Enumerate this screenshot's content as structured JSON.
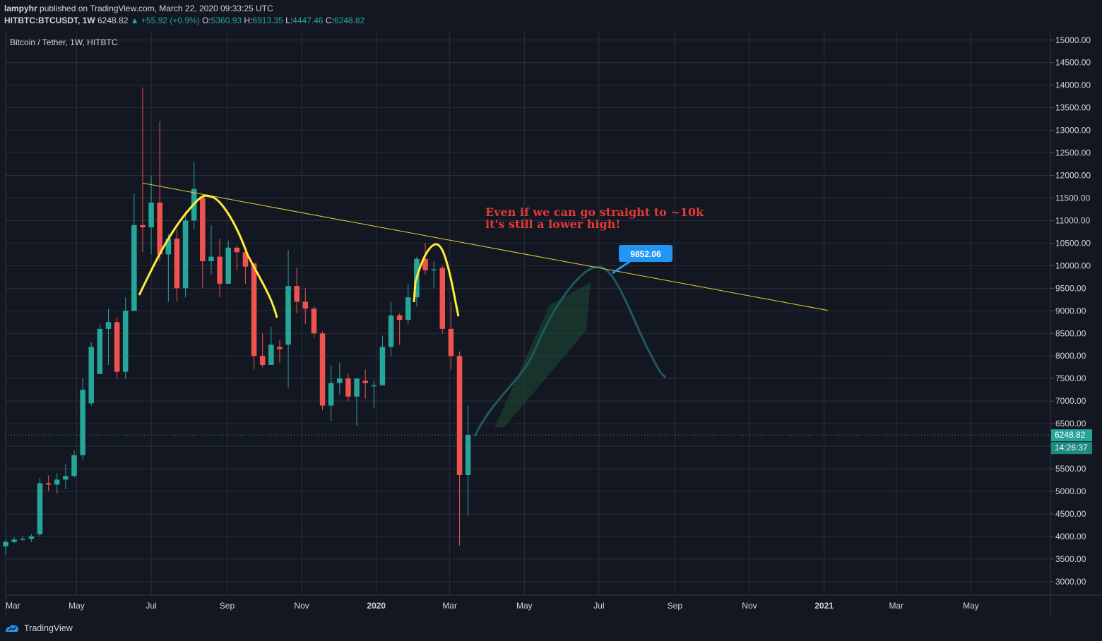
{
  "header": {
    "author": "lampyhr",
    "published_text": "published on TradingView.com, March 22, 2020 09:33:25 UTC",
    "symbol": "HITBTC:BTCUSDT, 1W",
    "last": "6248.82",
    "change": "▲ +55.92 (+0.9%)",
    "o_label": "O:",
    "o_value": "5360.93",
    "h_label": "H:",
    "h_value": "6913.35",
    "l_label": "L:",
    "l_value": "4447.46",
    "c_label": "C:",
    "c_value": "6248.82"
  },
  "footer": {
    "brand": "TradingView",
    "icon": "tradingview-logo-icon"
  },
  "colors": {
    "background": "#131722",
    "up": "#26a69a",
    "down": "#ef5350",
    "grid": "#2a2e39",
    "trendline": "#e3d42b",
    "annotation_text": "#e53935",
    "label_bg": "#2196f3",
    "projection": "#1e5a5a"
  },
  "chart_data": {
    "type": "candlestick",
    "title": "Bitcoin / Tether, 1W, HITBTC",
    "x_tick_labels": [
      "Mar",
      "May",
      "Jul",
      "Sep",
      "Nov",
      "2020",
      "Mar",
      "May",
      "Jul",
      "Sep",
      "Nov",
      "2021",
      "Mar",
      "May"
    ],
    "y_ticks": [
      "15000.00",
      "14500.00",
      "14000.00",
      "13500.00",
      "13000.00",
      "12500.00",
      "12000.00",
      "11500.00",
      "11000.00",
      "10500.00",
      "10000.00",
      "9500.00",
      "9000.00",
      "8500.00",
      "8000.00",
      "7500.00",
      "7000.00",
      "6500.00",
      "6000.00",
      "5500.00",
      "5000.00",
      "4500.00",
      "4000.00",
      "3500.00",
      "3000.00"
    ],
    "ylim": [
      2700,
      15200
    ],
    "x_range": [
      "2019-03-04",
      "2021-07-05"
    ],
    "grid": true,
    "last_price": {
      "value": 6248.82,
      "label": "6248.82",
      "countdown": "14:26:37"
    },
    "candles": [
      {
        "t": "2019-03-04",
        "o": 3780,
        "h": 3930,
        "l": 3600,
        "c": 3880
      },
      {
        "t": "2019-03-11",
        "o": 3880,
        "h": 3980,
        "l": 3850,
        "c": 3930
      },
      {
        "t": "2019-03-18",
        "o": 3930,
        "h": 4000,
        "l": 3900,
        "c": 3950
      },
      {
        "t": "2019-03-25",
        "o": 3950,
        "h": 4050,
        "l": 3880,
        "c": 4000
      },
      {
        "t": "2019-04-01",
        "o": 4050,
        "h": 5300,
        "l": 4000,
        "c": 5180
      },
      {
        "t": "2019-04-08",
        "o": 5180,
        "h": 5350,
        "l": 5000,
        "c": 5150
      },
      {
        "t": "2019-04-15",
        "o": 5150,
        "h": 5400,
        "l": 4950,
        "c": 5260
      },
      {
        "t": "2019-04-22",
        "o": 5260,
        "h": 5600,
        "l": 5050,
        "c": 5340
      },
      {
        "t": "2019-04-29",
        "o": 5340,
        "h": 5900,
        "l": 5300,
        "c": 5800
      },
      {
        "t": "2019-05-06",
        "o": 5800,
        "h": 7500,
        "l": 5700,
        "c": 7250
      },
      {
        "t": "2019-05-13",
        "o": 6950,
        "h": 8300,
        "l": 6900,
        "c": 8200
      },
      {
        "t": "2019-05-20",
        "o": 7600,
        "h": 8700,
        "l": 7600,
        "c": 8600
      },
      {
        "t": "2019-05-27",
        "o": 8600,
        "h": 9050,
        "l": 7800,
        "c": 8750
      },
      {
        "t": "2019-06-03",
        "o": 8750,
        "h": 8850,
        "l": 7500,
        "c": 7650
      },
      {
        "t": "2019-06-10",
        "o": 7650,
        "h": 9300,
        "l": 7500,
        "c": 9000
      },
      {
        "t": "2019-06-17",
        "o": 9000,
        "h": 11600,
        "l": 9000,
        "c": 10900
      },
      {
        "t": "2019-06-24",
        "o": 10900,
        "h": 13950,
        "l": 10300,
        "c": 10850
      },
      {
        "t": "2019-07-01",
        "o": 10850,
        "h": 12000,
        "l": 10250,
        "c": 11400
      },
      {
        "t": "2019-07-08",
        "o": 11400,
        "h": 13200,
        "l": 10100,
        "c": 10250
      },
      {
        "t": "2019-07-15",
        "o": 10250,
        "h": 10700,
        "l": 9200,
        "c": 10600
      },
      {
        "t": "2019-07-22",
        "o": 10600,
        "h": 10800,
        "l": 9200,
        "c": 9500
      },
      {
        "t": "2019-07-29",
        "o": 9500,
        "h": 11200,
        "l": 9300,
        "c": 11000
      },
      {
        "t": "2019-08-05",
        "o": 11000,
        "h": 12300,
        "l": 10800,
        "c": 11700
      },
      {
        "t": "2019-08-12",
        "o": 11500,
        "h": 11550,
        "l": 9500,
        "c": 10100
      },
      {
        "t": "2019-08-19",
        "o": 10100,
        "h": 10900,
        "l": 9800,
        "c": 10200
      },
      {
        "t": "2019-08-26",
        "o": 10200,
        "h": 10600,
        "l": 9300,
        "c": 9600
      },
      {
        "t": "2019-09-02",
        "o": 9600,
        "h": 10550,
        "l": 9600,
        "c": 10400
      },
      {
        "t": "2019-09-09",
        "o": 10400,
        "h": 10450,
        "l": 9900,
        "c": 10300
      },
      {
        "t": "2019-09-16",
        "o": 10300,
        "h": 10300,
        "l": 9600,
        "c": 9980
      },
      {
        "t": "2019-09-23",
        "o": 10050,
        "h": 10050,
        "l": 7700,
        "c": 8000
      },
      {
        "t": "2019-09-30",
        "o": 8000,
        "h": 8500,
        "l": 7750,
        "c": 7800
      },
      {
        "t": "2019-10-07",
        "o": 7800,
        "h": 8650,
        "l": 7850,
        "c": 8250
      },
      {
        "t": "2019-10-14",
        "o": 8200,
        "h": 8350,
        "l": 7850,
        "c": 8150
      },
      {
        "t": "2019-10-21",
        "o": 8250,
        "h": 10350,
        "l": 7300,
        "c": 9550
      },
      {
        "t": "2019-10-28",
        "o": 9550,
        "h": 9950,
        "l": 8950,
        "c": 9200
      },
      {
        "t": "2019-11-04",
        "o": 9200,
        "h": 9500,
        "l": 8700,
        "c": 9050
      },
      {
        "t": "2019-11-11",
        "o": 9050,
        "h": 9100,
        "l": 8400,
        "c": 8500
      },
      {
        "t": "2019-11-18",
        "o": 8500,
        "h": 8550,
        "l": 6800,
        "c": 6900
      },
      {
        "t": "2019-11-25",
        "o": 6900,
        "h": 7800,
        "l": 6550,
        "c": 7400
      },
      {
        "t": "2019-12-02",
        "o": 7400,
        "h": 7850,
        "l": 7150,
        "c": 7500
      },
      {
        "t": "2019-12-09",
        "o": 7500,
        "h": 7600,
        "l": 7000,
        "c": 7100
      },
      {
        "t": "2019-12-16",
        "o": 7100,
        "h": 7500,
        "l": 6450,
        "c": 7500
      },
      {
        "t": "2019-12-23",
        "o": 7450,
        "h": 7700,
        "l": 7050,
        "c": 7400
      },
      {
        "t": "2019-12-30",
        "o": 7350,
        "h": 7450,
        "l": 6850,
        "c": 7350
      },
      {
        "t": "2020-01-06",
        "o": 7350,
        "h": 8450,
        "l": 7350,
        "c": 8200
      },
      {
        "t": "2020-01-13",
        "o": 8200,
        "h": 9200,
        "l": 8000,
        "c": 8900
      },
      {
        "t": "2020-01-20",
        "o": 8900,
        "h": 8950,
        "l": 8250,
        "c": 8800
      },
      {
        "t": "2020-01-27",
        "o": 8800,
        "h": 9600,
        "l": 8700,
        "c": 9300
      },
      {
        "t": "2020-02-03",
        "o": 9300,
        "h": 10200,
        "l": 9100,
        "c": 10150
      },
      {
        "t": "2020-02-10",
        "o": 10150,
        "h": 10500,
        "l": 9800,
        "c": 9900
      },
      {
        "t": "2020-02-17",
        "o": 9900,
        "h": 10100,
        "l": 9500,
        "c": 9920
      },
      {
        "t": "2020-02-24",
        "o": 9950,
        "h": 10000,
        "l": 8500,
        "c": 8600
      },
      {
        "t": "2020-03-02",
        "o": 8600,
        "h": 9200,
        "l": 7700,
        "c": 8000
      },
      {
        "t": "2020-03-09",
        "o": 8000,
        "h": 8100,
        "l": 3800,
        "c": 5360
      },
      {
        "t": "2020-03-16",
        "o": 5360,
        "h": 6900,
        "l": 4450,
        "c": 6250
      }
    ],
    "trendline": {
      "from": {
        "t": "2019-06-24",
        "price": 11830
      },
      "to": {
        "t": "2021-01-04",
        "price": 9010
      }
    },
    "annotations": {
      "text_lines": [
        "Even if we can go straight to ~10k",
        "it's still a lower high!"
      ],
      "price_label": "9852.06"
    }
  }
}
